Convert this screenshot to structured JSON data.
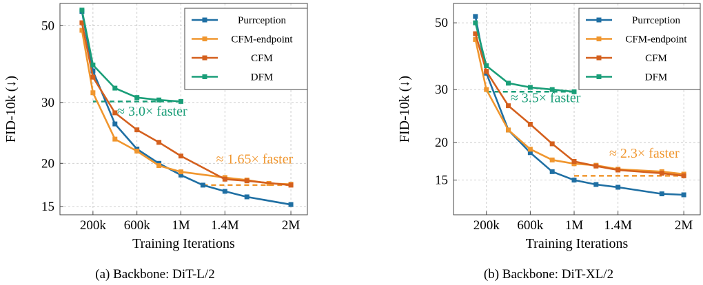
{
  "charts": [
    {
      "type": "line",
      "caption": "(a) Backbone: DiT-L/2",
      "xlabel": "Training Iterations",
      "ylabel": "FID-10k (↓)",
      "y_scale": "log",
      "xlim": [
        -100,
        2150
      ],
      "ylim": [
        14.2,
        58
      ],
      "x_ticks": [
        {
          "value": 200,
          "label": "200k"
        },
        {
          "value": 600,
          "label": "600k"
        },
        {
          "value": 1000,
          "label": "1M"
        },
        {
          "value": 1400,
          "label": "1.4M"
        },
        {
          "value": 2000,
          "label": "2M"
        }
      ],
      "y_ticks": [
        {
          "value": 15,
          "label": "15"
        },
        {
          "value": 20,
          "label": "20"
        },
        {
          "value": 30,
          "label": "30"
        },
        {
          "value": 50,
          "label": "50"
        }
      ],
      "grid": true,
      "legend_position": "top-right",
      "series": [
        {
          "name": "Purrception",
          "color": "#1f6fa3",
          "x": [
            100,
            200,
            400,
            600,
            800,
            1000,
            1200,
            1400,
            1600,
            2000
          ],
          "y": [
            55,
            37,
            26,
            22,
            20,
            18.5,
            17.3,
            16.6,
            16.0,
            15.2
          ]
        },
        {
          "name": "CFM-endpoint",
          "color": "#f0962e",
          "x": [
            100,
            200,
            400,
            600,
            800,
            1000,
            1400,
            1600,
            1800,
            2000
          ],
          "y": [
            48.5,
            32,
            23.5,
            21.7,
            19.7,
            18.9,
            18.2,
            17.9,
            17.5,
            17.4
          ]
        },
        {
          "name": "CFM",
          "color": "#d4601e",
          "x": [
            100,
            200,
            400,
            600,
            800,
            1000,
            1400,
            1600,
            2000
          ],
          "y": [
            51,
            35.5,
            28,
            25,
            23,
            21,
            18,
            17.8,
            17.3
          ]
        },
        {
          "name": "DFM",
          "color": "#1a9e78",
          "x": [
            100,
            200,
            400,
            600,
            800,
            1000
          ],
          "y": [
            55.5,
            38.5,
            33,
            31,
            30.5,
            30.2
          ]
        }
      ],
      "reference_lines": [
        {
          "color": "#1a9e78",
          "y": 30.2,
          "x_range": [
            200,
            1000
          ]
        },
        {
          "color": "#f0962e",
          "y": 17.3,
          "x_range": [
            1200,
            2000
          ]
        }
      ],
      "annotations": [
        {
          "text": "≈ 3.0× faster",
          "color": "#1a9e78",
          "x": 420,
          "y": 27.5
        },
        {
          "text": "≈ 1.65× faster",
          "color": "#f0962e",
          "x": 1320,
          "y": 20.0
        }
      ]
    },
    {
      "type": "line",
      "caption": "(b) Backbone: DiT-XL/2",
      "xlabel": "Training Iterations",
      "ylabel": "FID-10k (↓)",
      "y_scale": "log",
      "xlim": [
        -100,
        2150
      ],
      "ylim": [
        11.5,
        58
      ],
      "x_ticks": [
        {
          "value": 200,
          "label": "200k"
        },
        {
          "value": 600,
          "label": "600k"
        },
        {
          "value": 1000,
          "label": "1M"
        },
        {
          "value": 1400,
          "label": "1.4M"
        },
        {
          "value": 2000,
          "label": "2M"
        }
      ],
      "y_ticks": [
        {
          "value": 15,
          "label": "15"
        },
        {
          "value": 20,
          "label": "20"
        },
        {
          "value": 30,
          "label": "30"
        },
        {
          "value": 50,
          "label": "50"
        }
      ],
      "grid": true,
      "legend_position": "top-right",
      "series": [
        {
          "name": "Purrception",
          "color": "#1f6fa3",
          "x": [
            100,
            200,
            400,
            600,
            800,
            1000,
            1200,
            1400,
            1800,
            2000
          ],
          "y": [
            52.5,
            34,
            22,
            18.5,
            16,
            15,
            14.5,
            14.2,
            13.5,
            13.4
          ]
        },
        {
          "name": "CFM-endpoint",
          "color": "#f0962e",
          "x": [
            100,
            200,
            400,
            600,
            800,
            1000,
            1200,
            1400,
            1800,
            2000
          ],
          "y": [
            44,
            30,
            22,
            19,
            17.5,
            17,
            16.8,
            16.3,
            16.0,
            15.7
          ]
        },
        {
          "name": "CFM",
          "color": "#d4601e",
          "x": [
            100,
            200,
            400,
            600,
            800,
            1000,
            1200,
            1400,
            1800,
            2000
          ],
          "y": [
            46,
            34.5,
            26.5,
            23,
            19.8,
            17.3,
            16.7,
            16.2,
            15.8,
            15.5
          ]
        },
        {
          "name": "DFM",
          "color": "#1a9e78",
          "x": [
            100,
            200,
            400,
            600,
            800,
            1000
          ],
          "y": [
            50,
            36,
            31.5,
            30.5,
            30,
            29.5
          ]
        }
      ],
      "reference_lines": [
        {
          "color": "#1a9e78",
          "y": 29.5,
          "x_range": [
            200,
            1000
          ]
        },
        {
          "color": "#f0962e",
          "y": 15.5,
          "x_range": [
            1000,
            2000
          ]
        }
      ],
      "annotations": [
        {
          "text": "≈ 3.5× faster",
          "color": "#1a9e78",
          "x": 420,
          "y": 27.2
        },
        {
          "text": "≈ 2.3× faster",
          "color": "#f0962e",
          "x": 1320,
          "y": 17.8
        }
      ]
    }
  ]
}
